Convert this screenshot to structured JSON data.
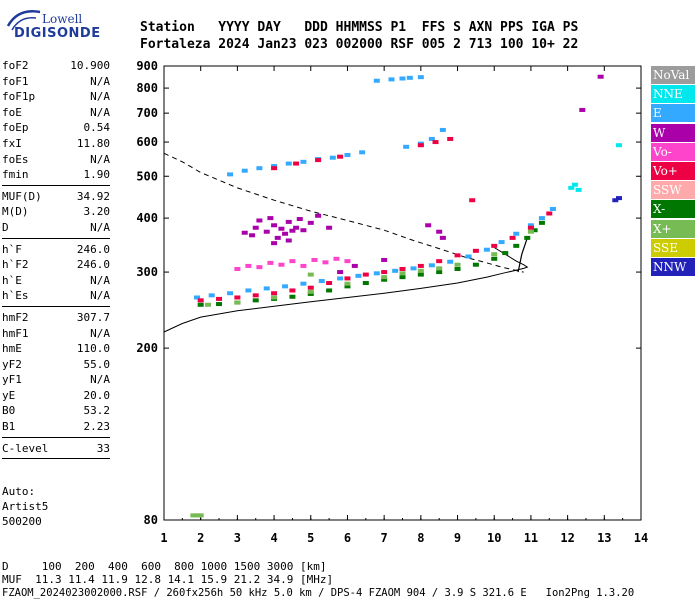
{
  "logo": {
    "top": "Lowell",
    "bottom": "DIGISONDE"
  },
  "header": {
    "line1": "Station   YYYY DAY   DDD HHMMSS P1  FFS S AXN PPS IGA PS",
    "line2": "Fortaleza 2024 Jan23 023 002000 RSF 005 2 713 100 10+ 22"
  },
  "params": [
    {
      "k": "foF2",
      "v": "10.900"
    },
    {
      "k": "foF1",
      "v": "N/A"
    },
    {
      "k": "foF1p",
      "v": "N/A"
    },
    {
      "k": "foE",
      "v": "N/A"
    },
    {
      "k": "foEp",
      "v": "0.54"
    },
    {
      "k": "fxI",
      "v": "11.80"
    },
    {
      "k": "foEs",
      "v": "N/A"
    },
    {
      "k": "fmin",
      "v": "1.90"
    },
    {
      "sep": true
    },
    {
      "k": "MUF(D)",
      "v": "34.92"
    },
    {
      "k": "M(D)",
      "v": "3.20"
    },
    {
      "k": "D",
      "v": "N/A"
    },
    {
      "sep": true
    },
    {
      "k": "h`F",
      "v": "246.0"
    },
    {
      "k": "h`F2",
      "v": "246.0"
    },
    {
      "k": "h`E",
      "v": "N/A"
    },
    {
      "k": "h`Es",
      "v": "N/A"
    },
    {
      "sep": true
    },
    {
      "k": "hmF2",
      "v": "307.7"
    },
    {
      "k": "hmF1",
      "v": "N/A"
    },
    {
      "k": "hmE",
      "v": "110.0"
    },
    {
      "k": "yF2",
      "v": "55.0"
    },
    {
      "k": "yF1",
      "v": "N/A"
    },
    {
      "k": "yE",
      "v": "20.0"
    },
    {
      "k": "B0",
      "v": "53.2"
    },
    {
      "k": "B1",
      "v": "2.23"
    },
    {
      "sep": true
    },
    {
      "k": "C-level",
      "v": "33"
    },
    {
      "sep": true
    }
  ],
  "auto": {
    "line1": "Auto:",
    "line2": "Artist5",
    "line3": "500200"
  },
  "bottom": {
    "d_line": "D     100  200  400  600  800 1000 1500 3000 [km]",
    "muf_line": "MUF  11.3 11.4 11.9 12.8 14.1 15.9 21.2 34.9 [MHz]",
    "file_line": "FZAOM_2024023002000.RSF / 260fx256h 50 kHz 5.0 km / DPS-4 FZAOM 904 / 3.9 S 321.6 E   Ion2Png 1.3.20"
  },
  "legend": [
    {
      "label": "NoVal",
      "color": "#9c9c9c"
    },
    {
      "label": "NNE",
      "color": "#00e8ee"
    },
    {
      "label": "E",
      "color": "#33aaff"
    },
    {
      "label": "W",
      "color": "#aa00aa"
    },
    {
      "label": "Vo-",
      "color": "#ff44cc"
    },
    {
      "label": "Vo+",
      "color": "#ee0044"
    },
    {
      "label": "SSW",
      "color": "#ffaaaa"
    },
    {
      "label": "X-",
      "color": "#007700"
    },
    {
      "label": "X+",
      "color": "#77bb55"
    },
    {
      "label": "SSE",
      "color": "#cccc00"
    },
    {
      "label": "NNW",
      "color": "#2222bb"
    }
  ],
  "chart_data": {
    "type": "scatter",
    "xlim": [
      1,
      14
    ],
    "ylim": [
      80,
      900
    ],
    "y_scale": "log",
    "x_ticks": [
      "1",
      "2",
      "3",
      "4",
      "5",
      "6",
      "7",
      "8",
      "9",
      "10",
      "11",
      "12",
      "13",
      "14"
    ],
    "y_ticks": [
      "80",
      "200",
      "300",
      "400",
      "500",
      "600",
      "700",
      "800",
      "900"
    ],
    "grid": false,
    "legend_position": "right",
    "traces": [
      {
        "name": "X-",
        "color": "#007700",
        "x": [
          2.0,
          2.5,
          3.0,
          3.5,
          4.0,
          4.5,
          5.0,
          5.5,
          6.0,
          6.5,
          7.0,
          7.5,
          8.0,
          8.5,
          9.0,
          9.5,
          10.0,
          10.3,
          10.6,
          10.9,
          11.1,
          11.3
        ],
        "y": [
          252,
          253,
          255,
          258,
          260,
          263,
          267,
          272,
          278,
          283,
          288,
          292,
          296,
          300,
          305,
          312,
          322,
          332,
          345,
          360,
          375,
          390
        ]
      },
      {
        "name": "E",
        "color": "#33aaff",
        "x": [
          1.9,
          2.3,
          2.8,
          3.3,
          3.8,
          4.3,
          4.8,
          5.3,
          5.8,
          6.3,
          6.8,
          7.3,
          7.8,
          8.3,
          8.8,
          9.3,
          9.8,
          10.2,
          10.6,
          11.0,
          11.3,
          11.6
        ],
        "y": [
          262,
          265,
          268,
          272,
          275,
          278,
          282,
          286,
          290,
          294,
          298,
          302,
          306,
          311,
          317,
          326,
          338,
          352,
          368,
          385,
          400,
          420
        ]
      },
      {
        "name": "Vo+",
        "color": "#ee0044",
        "x": [
          2.0,
          2.5,
          3.0,
          3.5,
          4.0,
          4.5,
          5.0,
          5.5,
          6.0,
          6.5,
          7.0,
          7.5,
          8.0,
          8.5,
          9.0,
          9.5,
          10.0,
          10.5,
          11.0,
          11.5
        ],
        "y": [
          258,
          260,
          262,
          265,
          268,
          272,
          276,
          283,
          290,
          296,
          300,
          305,
          310,
          318,
          328,
          336,
          345,
          360,
          380,
          410
        ]
      },
      {
        "name": "X+",
        "color": "#77bb55",
        "x": [
          2.2,
          3.0,
          4.0,
          5.0,
          6.0,
          7.0,
          7.5,
          8.0,
          8.5,
          9.0,
          10.0,
          11.0
        ],
        "y": [
          252,
          255,
          262,
          270,
          282,
          292,
          298,
          302,
          306,
          312,
          330,
          372
        ]
      },
      {
        "name": "W",
        "color": "#aa00aa",
        "x": [
          3.2,
          3.5,
          3.8,
          4.0,
          4.2,
          4.4,
          4.6,
          4.8,
          5.0,
          3.6,
          3.9,
          4.1,
          4.3,
          4.5,
          4.7,
          3.4,
          5.2,
          5.5,
          4.0,
          4.4,
          5.8,
          6.2,
          7.0,
          8.2,
          8.5,
          8.6
        ],
        "y": [
          370,
          380,
          372,
          385,
          378,
          392,
          380,
          375,
          390,
          395,
          400,
          360,
          368,
          374,
          398,
          365,
          405,
          380,
          350,
          355,
          300,
          310,
          320,
          385,
          372,
          360
        ]
      },
      {
        "name": "Vo-",
        "color": "#ff44cc",
        "x": [
          3.0,
          3.3,
          3.6,
          3.9,
          4.2,
          4.5,
          4.8,
          5.1,
          5.4,
          5.7,
          6.0
        ],
        "y": [
          305,
          310,
          308,
          315,
          312,
          318,
          310,
          320,
          316,
          322,
          318
        ]
      },
      {
        "name": "E (F2 2nd hop)",
        "color": "#33aaff",
        "x": [
          2.8,
          3.2,
          3.6,
          4.0,
          4.4,
          4.8,
          5.2,
          5.6,
          6.0,
          6.4,
          7.6,
          8.0,
          8.3,
          8.6,
          6.8,
          7.2,
          7.5,
          7.7,
          8.0
        ],
        "y": [
          505,
          515,
          522,
          528,
          535,
          540,
          548,
          552,
          560,
          568,
          585,
          595,
          610,
          640,
          832,
          838,
          842,
          845,
          848
        ]
      },
      {
        "name": "Vo+ (2nd hop)",
        "color": "#ee0044",
        "x": [
          4.0,
          4.6,
          5.2,
          5.8,
          8.0,
          8.4,
          8.8,
          9.4
        ],
        "y": [
          522,
          535,
          545,
          555,
          590,
          600,
          610,
          440
        ]
      },
      {
        "name": "NNE",
        "color": "#00e8ee",
        "x": [
          12.1,
          12.2,
          12.3,
          13.4
        ],
        "y": [
          470,
          478,
          465,
          590
        ]
      },
      {
        "name": "X+ (edge)",
        "color": "#77bb55",
        "x": [
          1.8,
          1.9,
          2.0,
          5.0
        ],
        "y": [
          82,
          82,
          82,
          296
        ]
      },
      {
        "name": "NNW",
        "color": "#2222bb",
        "x": [
          13.3,
          13.4
        ],
        "y": [
          440,
          445
        ]
      },
      {
        "name": "W (right)",
        "color": "#aa00aa",
        "x": [
          12.9,
          12.4
        ],
        "y": [
          850,
          712
        ]
      }
    ],
    "profile_dashed": {
      "x": [
        1.0,
        1.5,
        2.0,
        3.0,
        4.0,
        5.0,
        6.0,
        7.0,
        7.8,
        8.5,
        9.2,
        9.8,
        10.2,
        10.5,
        10.7,
        10.8
      ],
      "y": [
        565,
        540,
        510,
        470,
        440,
        415,
        395,
        375,
        355,
        340,
        325,
        315,
        308,
        304,
        301,
        300
      ]
    },
    "profile_solid": {
      "x": [
        1.0,
        1.5,
        2.0,
        3.0,
        4.0,
        5.0,
        6.0,
        7.0,
        8.0,
        9.0,
        9.8,
        10.3,
        10.6,
        10.8,
        10.9,
        10.8,
        10.6,
        10.3,
        10.0
      ],
      "y": [
        218,
        228,
        236,
        244,
        250,
        256,
        262,
        268,
        275,
        283,
        292,
        299,
        303,
        306,
        308,
        312,
        318,
        330,
        342
      ]
    },
    "profile_vertical": {
      "x": [
        10.65,
        10.75,
        10.9
      ],
      "y": [
        300,
        330,
        360
      ]
    }
  }
}
